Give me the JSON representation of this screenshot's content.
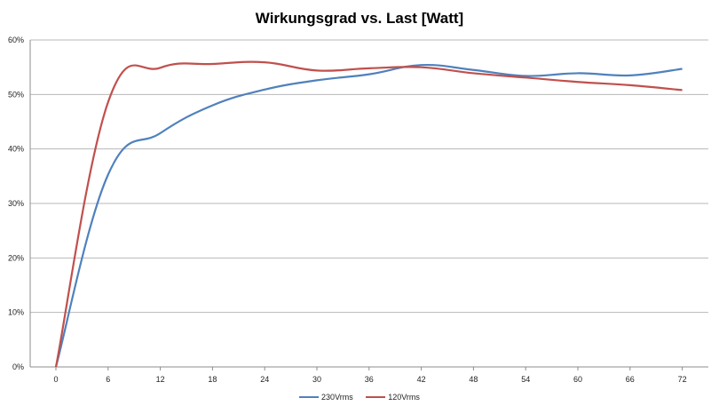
{
  "chart_data": {
    "type": "line",
    "title": "Wirkungsgrad vs. Last [Watt]",
    "xlabel": "",
    "ylabel": "",
    "x": [
      0,
      6,
      12,
      18,
      24,
      30,
      36,
      42,
      48,
      54,
      60,
      66,
      72
    ],
    "x_tick_labels": [
      "0",
      "6",
      "12",
      "18",
      "24",
      "30",
      "36",
      "42",
      "48",
      "54",
      "60",
      "66",
      "72"
    ],
    "y_tick_labels": [
      "0%",
      "10%",
      "20%",
      "30%",
      "40%",
      "50%",
      "60%"
    ],
    "ylim": [
      0,
      60
    ],
    "grid": true,
    "legend_position": "bottom",
    "series": [
      {
        "name": "230Vrms",
        "color": "#4f81bd",
        "values": [
          0,
          35.3,
          42.9,
          48.0,
          50.9,
          52.6,
          53.7,
          55.4,
          54.5,
          53.4,
          53.9,
          53.5,
          54.7
        ]
      },
      {
        "name": "120Vrms",
        "color": "#c0504d",
        "values": [
          0,
          48.6,
          54.9,
          55.6,
          55.9,
          54.4,
          54.8,
          55.0,
          53.9,
          53.1,
          52.3,
          51.7,
          50.8
        ]
      }
    ]
  }
}
